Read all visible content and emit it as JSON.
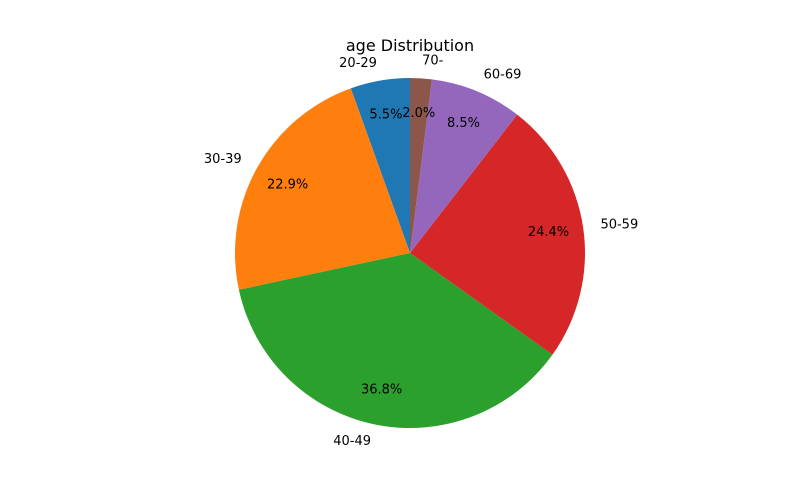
{
  "chart_data": {
    "type": "pie",
    "title": "age Distribution",
    "categories": [
      "20-29",
      "30-39",
      "40-49",
      "50-59",
      "60-69",
      "70-"
    ],
    "values": [
      5.5,
      22.9,
      36.8,
      24.4,
      8.5,
      2.0
    ],
    "percent_labels": [
      "5.5%",
      "22.9%",
      "36.8%",
      "24.4%",
      "8.5%",
      "2.0%"
    ],
    "colors": [
      "#1f77b4",
      "#ff7f0e",
      "#2ca02c",
      "#d62728",
      "#9467bd",
      "#8c564b"
    ],
    "start_angle_deg": 90,
    "direction": "counterclockwise",
    "legend": "none"
  }
}
